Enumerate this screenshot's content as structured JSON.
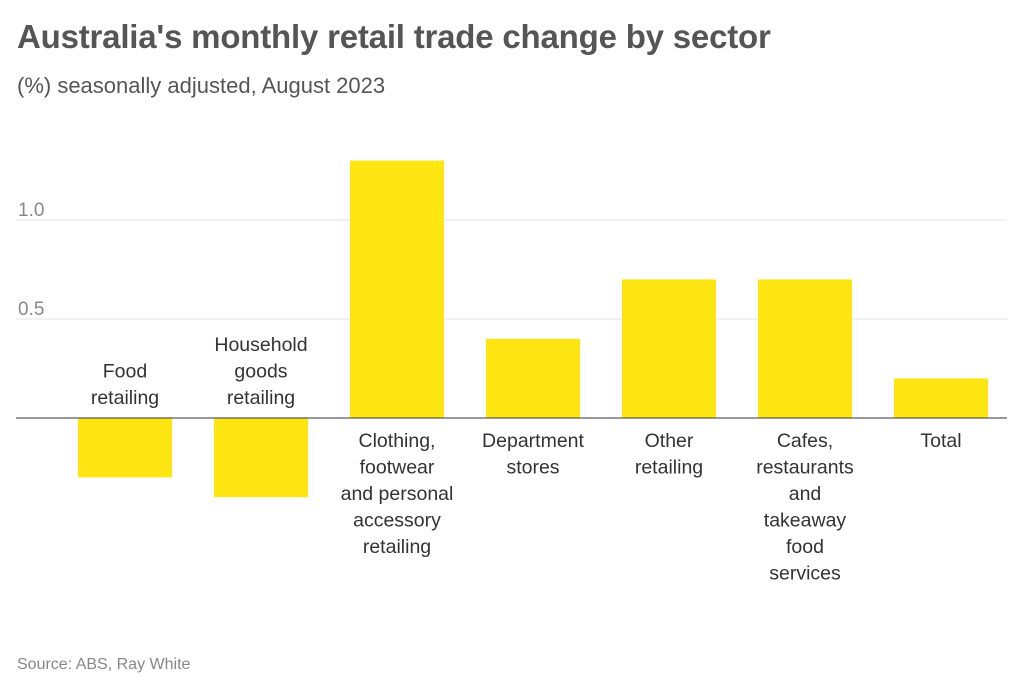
{
  "title": "Australia's monthly retail trade change by sector",
  "subtitle": "(%) seasonally adjusted, August 2023",
  "source": "Source: ABS, Ray White",
  "colors": {
    "bar": "#ffe512"
  },
  "chart_data": {
    "type": "bar",
    "title": "Australia's monthly retail trade change by sector",
    "subtitle": "(%) seasonally adjusted, August 2023",
    "categories": [
      "Food retailing",
      "Household goods retailing",
      "Clothing, footwear and personal accessory retailing",
      "Department stores",
      "Other retailing",
      "Cafes, restaurants and takeaway food services",
      "Total"
    ],
    "category_label_lines": [
      [
        "Food",
        "retailing"
      ],
      [
        "Household",
        "goods",
        "retailing"
      ],
      [
        "Clothing,",
        "footwear",
        "and personal",
        "accessory",
        "retailing"
      ],
      [
        "Department",
        "stores"
      ],
      [
        "Other",
        "retailing"
      ],
      [
        "Cafes,",
        "restaurants",
        "and",
        "takeaway",
        "food",
        "services"
      ],
      [
        "Total"
      ]
    ],
    "values": [
      -0.3,
      -0.4,
      1.3,
      0.4,
      0.7,
      0.7,
      0.2
    ],
    "yticks": [
      {
        "value": 0.5,
        "label": "0.5"
      },
      {
        "value": 1.0,
        "label": "1.0"
      }
    ],
    "ylim": [
      -0.5,
      1.3
    ],
    "grid": true,
    "legend": "none"
  }
}
